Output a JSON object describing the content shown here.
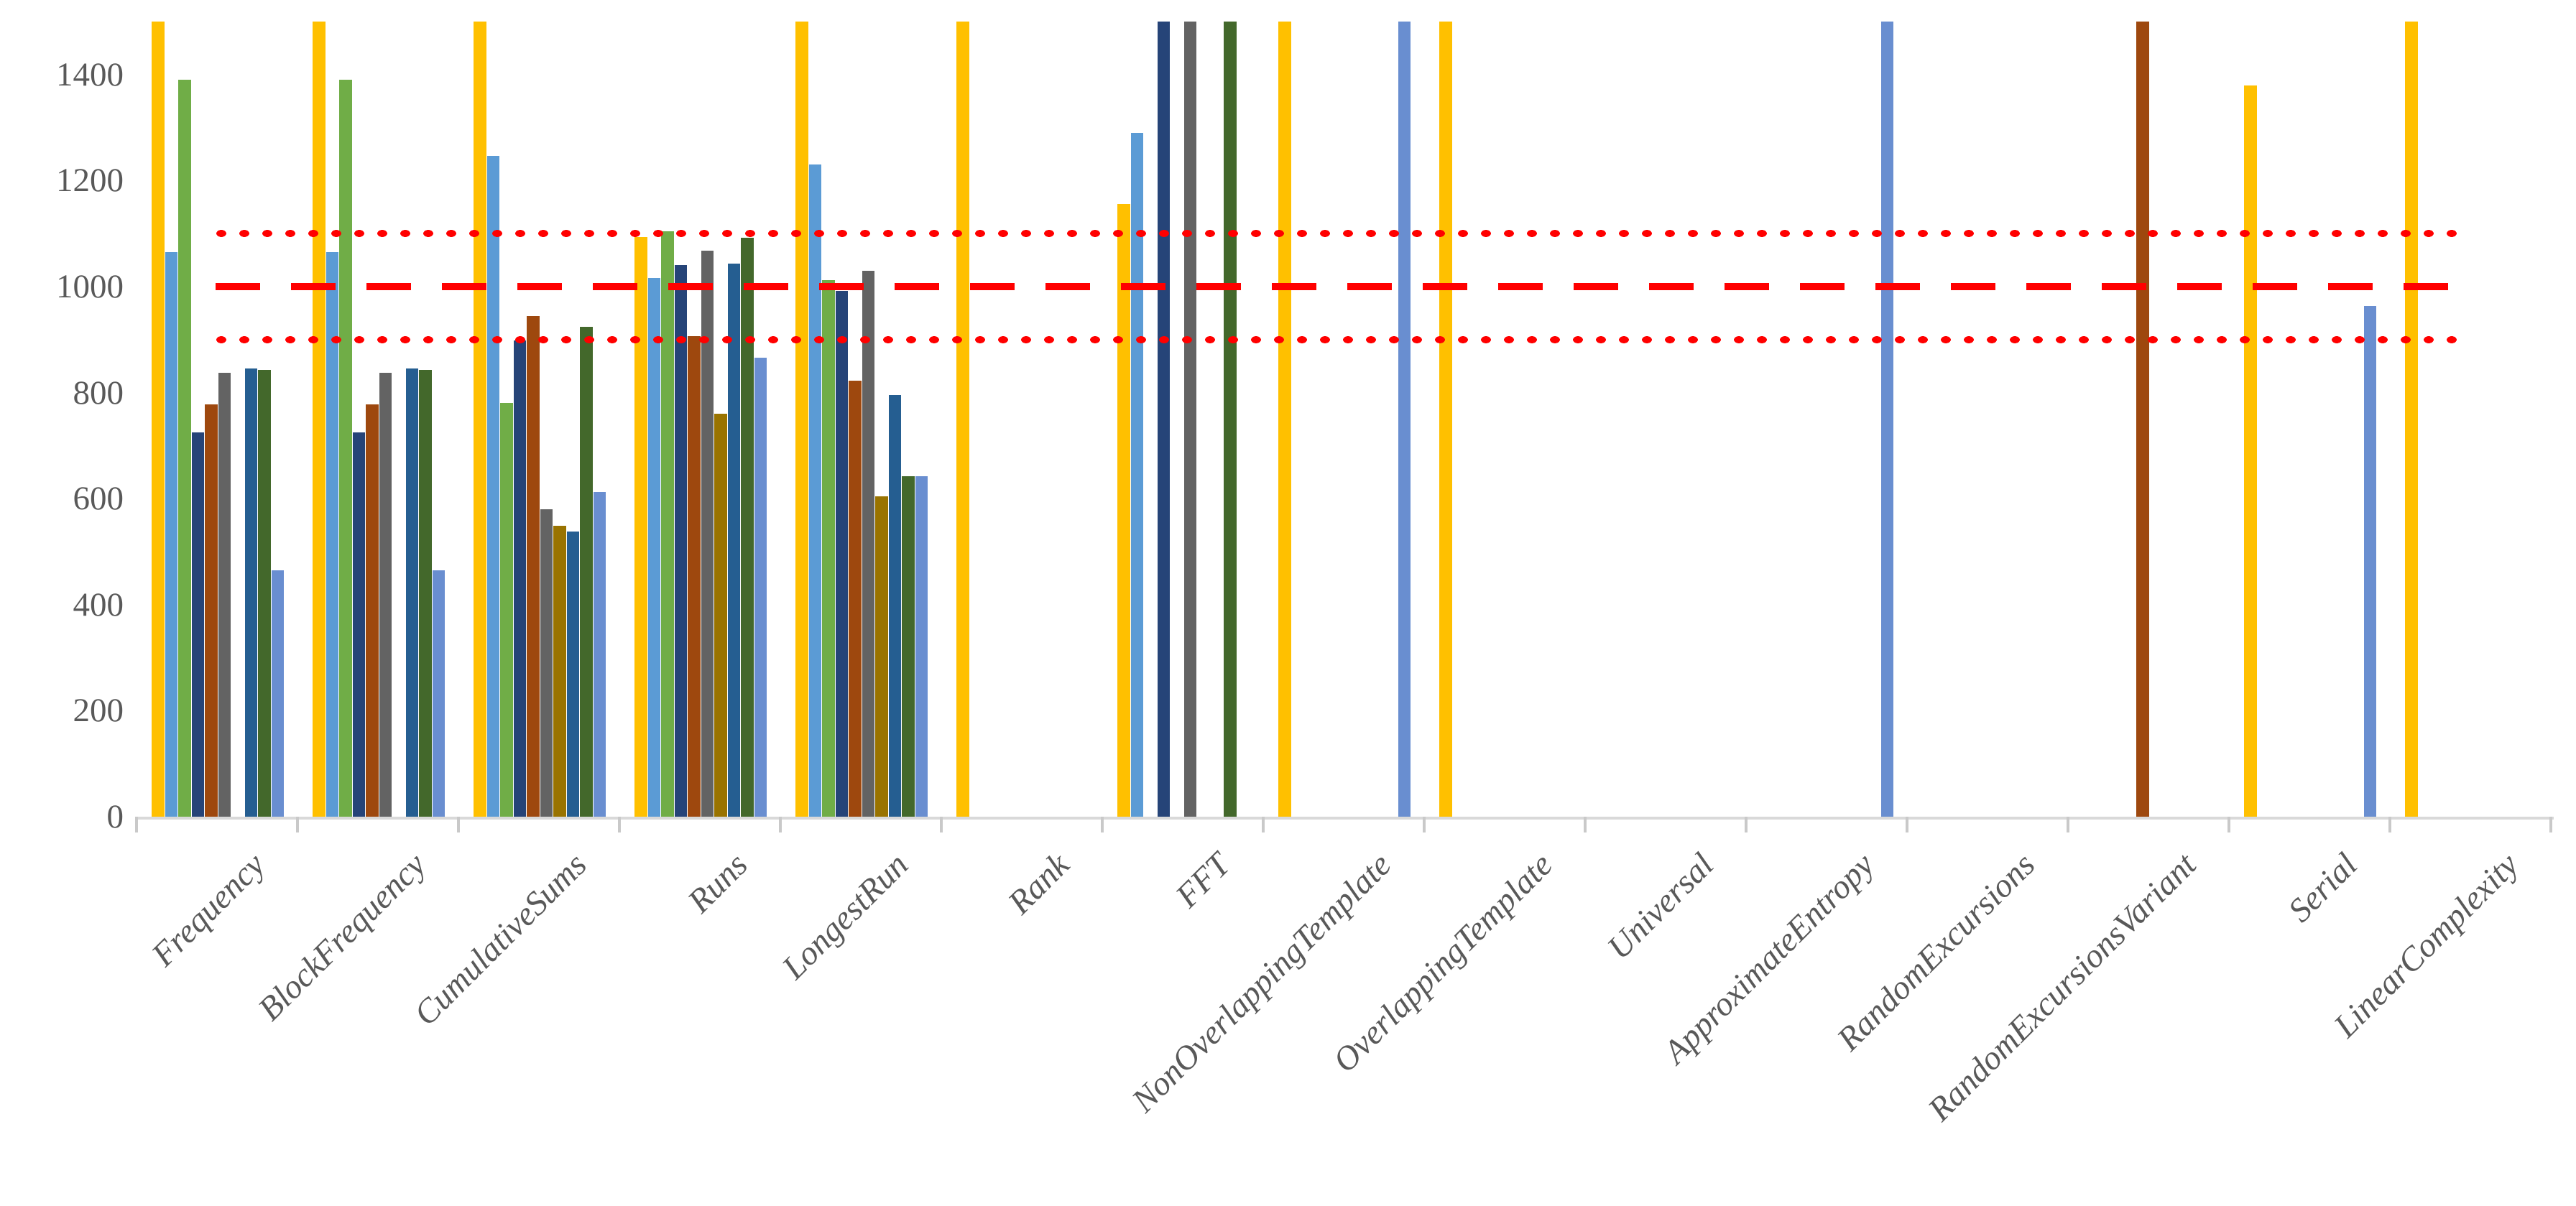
{
  "chart_data": {
    "type": "bar",
    "title": "",
    "xlabel": "",
    "ylabel": "",
    "ylim": [
      0,
      1500
    ],
    "yticks": [
      0,
      200,
      400,
      600,
      800,
      1000,
      1200,
      1400
    ],
    "grid": false,
    "legend_position": "none",
    "axis_color": "#d9d9d9",
    "tick_color": "#c9c9c9",
    "label_color": "#595959",
    "categories": [
      "Frequency",
      "BlockFrequency",
      "CumulativeSums",
      "Runs",
      "LongestRun",
      "Rank",
      "FFT",
      "NonOverlappingTemplate",
      "OverlappingTemplate",
      "Universal",
      "ApproximateEntropy",
      "RandomExcursions",
      "RandomExcursionsVariant",
      "Serial",
      "LinearComplexity"
    ],
    "series": [
      {
        "name": "gold",
        "color": "#FFC000",
        "values": [
          1500,
          1500,
          1500,
          1094,
          1500,
          1500,
          1156,
          1500,
          1500,
          0,
          0,
          0,
          0,
          1380,
          1500
        ]
      },
      {
        "name": "light-blue",
        "color": "#5B9BD5",
        "values": [
          1065,
          1065,
          1246,
          1016,
          1230,
          0,
          1290,
          0,
          0,
          0,
          0,
          0,
          0,
          0,
          0
        ]
      },
      {
        "name": "green",
        "color": "#70AD47",
        "values": [
          1390,
          1390,
          780,
          1104,
          1012,
          0,
          0,
          0,
          0,
          0,
          0,
          0,
          0,
          0,
          0
        ]
      },
      {
        "name": "dark-navy",
        "color": "#264478",
        "values": [
          725,
          725,
          898,
          1040,
          992,
          0,
          1500,
          0,
          0,
          0,
          0,
          0,
          0,
          0,
          0
        ]
      },
      {
        "name": "brown",
        "color": "#9E480E",
        "values": [
          778,
          778,
          944,
          906,
          822,
          0,
          0,
          0,
          0,
          0,
          0,
          0,
          1500,
          0,
          0
        ]
      },
      {
        "name": "gray",
        "color": "#636363",
        "values": [
          838,
          838,
          580,
          1068,
          1030,
          0,
          1500,
          0,
          0,
          0,
          0,
          0,
          0,
          0,
          0
        ]
      },
      {
        "name": "dark-yellow",
        "color": "#997300",
        "values": [
          0,
          0,
          549,
          760,
          604,
          0,
          0,
          0,
          0,
          0,
          0,
          0,
          0,
          0,
          0
        ]
      },
      {
        "name": "medium-blue",
        "color": "#255E91",
        "values": [
          846,
          846,
          538,
          1044,
          796,
          0,
          0,
          0,
          0,
          0,
          0,
          0,
          0,
          0,
          0
        ]
      },
      {
        "name": "dark-green",
        "color": "#43682B",
        "values": [
          843,
          843,
          924,
          1092,
          642,
          0,
          1500,
          0,
          0,
          0,
          0,
          0,
          0,
          0,
          0
        ]
      },
      {
        "name": "cornflower-blue",
        "color": "#698ED0",
        "values": [
          465,
          465,
          612,
          866,
          642,
          0,
          0,
          1500,
          0,
          0,
          1500,
          0,
          0,
          964,
          0
        ]
      }
    ],
    "reference_lines": [
      {
        "value": 1100,
        "style": "dotted",
        "color": "#FF0000"
      },
      {
        "value": 1000,
        "style": "dashed",
        "color": "#FF0000"
      },
      {
        "value": 900,
        "style": "dotted",
        "color": "#FF0000"
      }
    ]
  }
}
